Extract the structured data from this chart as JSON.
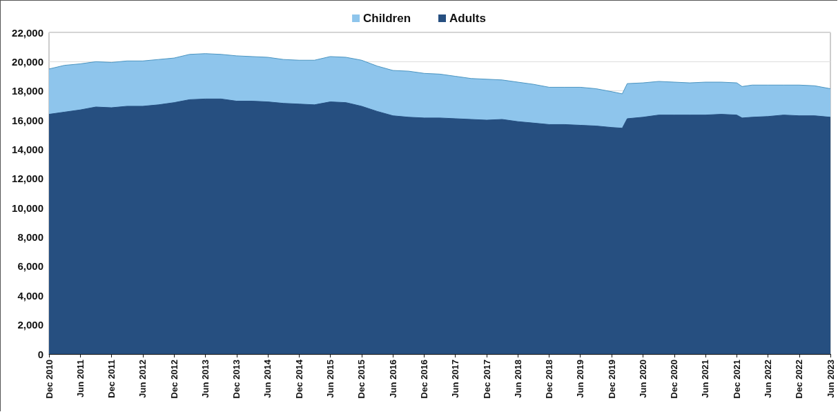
{
  "chart_data": {
    "type": "area",
    "stacked": true,
    "legend": "top",
    "grid": "y",
    "marker": "none",
    "line_style": "solid",
    "x": [
      "2010-12",
      "2011-03",
      "2011-06",
      "2011-09",
      "2011-12",
      "2012-03",
      "2012-06",
      "2012-09",
      "2012-12",
      "2013-03",
      "2013-06",
      "2013-09",
      "2013-12",
      "2014-03",
      "2014-06",
      "2014-09",
      "2014-12",
      "2015-03",
      "2015-06",
      "2015-09",
      "2015-12",
      "2016-03",
      "2016-06",
      "2016-09",
      "2016-12",
      "2017-03",
      "2017-06",
      "2017-09",
      "2017-12",
      "2018-03",
      "2018-06",
      "2018-09",
      "2018-12",
      "2019-03",
      "2019-06",
      "2019-09",
      "2019-12",
      "2020-02",
      "2020-03",
      "2020-06",
      "2020-09",
      "2020-12",
      "2021-03",
      "2021-06",
      "2021-09",
      "2021-12",
      "2022-01",
      "2022-03",
      "2022-06",
      "2022-09",
      "2022-12",
      "2023-03",
      "2023-06"
    ],
    "series": [
      {
        "name": "Adults",
        "color": "#264f80",
        "values": [
          16400,
          16550,
          16700,
          16900,
          16850,
          16950,
          16950,
          17050,
          17200,
          17400,
          17450,
          17450,
          17300,
          17300,
          17250,
          17150,
          17100,
          17050,
          17250,
          17200,
          16950,
          16600,
          16300,
          16200,
          16150,
          16150,
          16100,
          16050,
          16000,
          16050,
          15900,
          15800,
          15700,
          15700,
          15650,
          15600,
          15500,
          15450,
          16100,
          16200,
          16350,
          16350,
          16350,
          16350,
          16400,
          16350,
          16150,
          16200,
          16250,
          16350,
          16300,
          16300,
          16200
        ]
      },
      {
        "name": "Children",
        "color": "#8ec5ec",
        "values": [
          3100,
          3200,
          3150,
          3100,
          3100,
          3100,
          3100,
          3100,
          3050,
          3100,
          3100,
          3050,
          3100,
          3050,
          3050,
          3000,
          3000,
          3050,
          3100,
          3100,
          3150,
          3100,
          3100,
          3150,
          3050,
          3000,
          2900,
          2800,
          2800,
          2700,
          2700,
          2650,
          2550,
          2550,
          2600,
          2550,
          2450,
          2350,
          2400,
          2350,
          2300,
          2250,
          2200,
          2250,
          2200,
          2200,
          2150,
          2200,
          2150,
          2050,
          2100,
          2050,
          1950
        ]
      }
    ],
    "xlim": [
      "2010-12",
      "2023-06"
    ],
    "xticks": [
      {
        "value": "2010-12",
        "label": "Dec 2010"
      },
      {
        "value": "2011-06",
        "label": "Jun 2011"
      },
      {
        "value": "2011-12",
        "label": "Dec 2011"
      },
      {
        "value": "2012-06",
        "label": "Jun 2012"
      },
      {
        "value": "2012-12",
        "label": "Dec 2012"
      },
      {
        "value": "2013-06",
        "label": "Jun 2013"
      },
      {
        "value": "2013-12",
        "label": "Dec 2013"
      },
      {
        "value": "2014-06",
        "label": "Jun 2014"
      },
      {
        "value": "2014-12",
        "label": "Dec 2014"
      },
      {
        "value": "2015-06",
        "label": "Jun 2015"
      },
      {
        "value": "2015-12",
        "label": "Dec 2015"
      },
      {
        "value": "2016-06",
        "label": "Jun 2016"
      },
      {
        "value": "2016-12",
        "label": "Dec 2016"
      },
      {
        "value": "2017-06",
        "label": "Jun 2017"
      },
      {
        "value": "2017-12",
        "label": "Dec 2017"
      },
      {
        "value": "2018-06",
        "label": "Jun 2018"
      },
      {
        "value": "2018-12",
        "label": "Dec 2018"
      },
      {
        "value": "2019-06",
        "label": "Jun 2019"
      },
      {
        "value": "2019-12",
        "label": "Dec 2019"
      },
      {
        "value": "2020-06",
        "label": "Jun 2020"
      },
      {
        "value": "2020-12",
        "label": "Dec 2020"
      },
      {
        "value": "2021-06",
        "label": "Jun 2021"
      },
      {
        "value": "2021-12",
        "label": "Dec 2021"
      },
      {
        "value": "2022-06",
        "label": "Jun 2022"
      },
      {
        "value": "2022-12",
        "label": "Dec 2022"
      },
      {
        "value": "2023-06",
        "label": "Jun 2023"
      }
    ],
    "ylim": [
      0,
      22000
    ],
    "yticks": [
      0,
      {
        "value": 2000,
        "label": "2,000"
      },
      {
        "value": 4000,
        "label": "4,000"
      },
      {
        "value": 6000,
        "label": "6,000"
      },
      {
        "value": 8000,
        "label": "8,000"
      },
      {
        "value": 10000,
        "label": "10,000"
      },
      {
        "value": 12000,
        "label": "12,000"
      },
      {
        "value": 14000,
        "label": "14,000"
      },
      {
        "value": 16000,
        "label": "16,000"
      },
      {
        "value": 18000,
        "label": "18,000"
      },
      {
        "value": 20000,
        "label": "20,000"
      },
      {
        "value": 22000,
        "label": "22,000"
      }
    ]
  }
}
